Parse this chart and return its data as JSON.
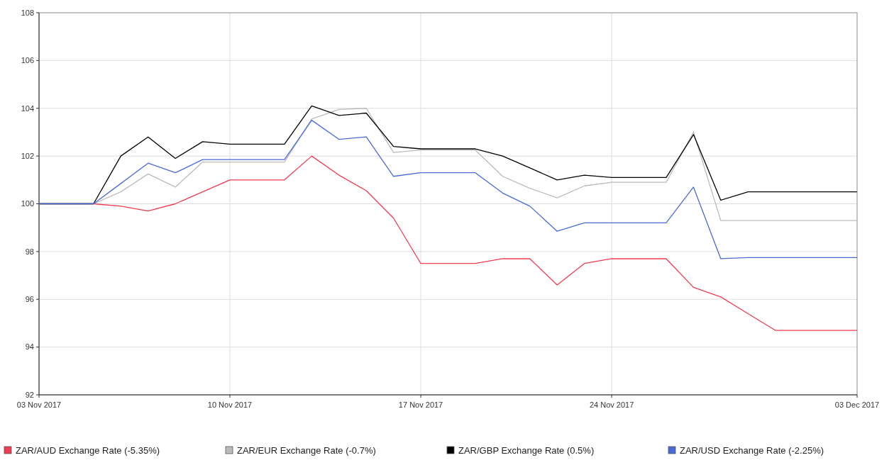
{
  "chart_data": {
    "type": "line",
    "x": [
      "2017-11-03",
      "2017-11-04",
      "2017-11-05",
      "2017-11-06",
      "2017-11-07",
      "2017-11-08",
      "2017-11-09",
      "2017-11-10",
      "2017-11-11",
      "2017-11-12",
      "2017-11-13",
      "2017-11-14",
      "2017-11-15",
      "2017-11-16",
      "2017-11-17",
      "2017-11-18",
      "2017-11-19",
      "2017-11-20",
      "2017-11-21",
      "2017-11-22",
      "2017-11-23",
      "2017-11-24",
      "2017-11-25",
      "2017-11-26",
      "2017-11-27",
      "2017-11-28",
      "2017-11-29",
      "2017-11-30",
      "2017-12-01",
      "2017-12-02",
      "2017-12-03"
    ],
    "series": [
      {
        "name": "ZAR/AUD Exchange Rate (-5.35%)",
        "color": "#f03c50",
        "values": [
          100,
          100,
          100,
          99.9,
          99.7,
          100,
          100.5,
          101,
          101,
          101,
          102,
          101.2,
          100.55,
          99.4,
          97.5,
          97.5,
          97.5,
          97.7,
          97.7,
          96.6,
          97.5,
          97.7,
          97.7,
          97.7,
          96.5,
          96.1,
          95.4,
          94.7,
          94.7,
          94.7,
          94.7
        ]
      },
      {
        "name": "ZAR/EUR Exchange Rate (-0.7%)",
        "color": "#bbbbbb",
        "values": [
          100,
          100,
          100,
          100.5,
          101.25,
          100.7,
          101.75,
          101.75,
          101.75,
          101.75,
          103.55,
          103.95,
          104,
          102.15,
          102.25,
          102.25,
          102.25,
          101.15,
          100.65,
          100.25,
          100.75,
          100.9,
          100.9,
          100.9,
          103,
          99.3,
          99.3,
          99.3,
          99.3,
          99.3,
          99.3
        ]
      },
      {
        "name": "ZAR/GBP Exchange Rate (0.5%)",
        "color": "#000000",
        "values": [
          100,
          100,
          100,
          102,
          102.8,
          101.9,
          102.6,
          102.5,
          102.5,
          102.5,
          104.1,
          103.7,
          103.8,
          102.4,
          102.3,
          102.3,
          102.3,
          102,
          101.5,
          101,
          101.2,
          101.1,
          101.1,
          101.1,
          102.9,
          100.15,
          100.5,
          100.5,
          100.5,
          100.5,
          100.5
        ]
      },
      {
        "name": "ZAR/USD Exchange Rate (-2.25%)",
        "color": "#4a6ad8",
        "values": [
          100,
          100,
          100,
          100.85,
          101.7,
          101.3,
          101.85,
          101.85,
          101.85,
          101.85,
          103.5,
          102.7,
          102.8,
          101.15,
          101.3,
          101.3,
          101.3,
          100.45,
          99.9,
          98.85,
          99.2,
          99.2,
          99.2,
          99.2,
          100.7,
          97.7,
          97.75,
          97.75,
          97.75,
          97.75,
          97.75
        ]
      }
    ],
    "xlim": [
      "2017-11-03",
      "2017-12-03"
    ],
    "xticks": [
      {
        "value": "2017-11-03",
        "label": "03 Nov 2017"
      },
      {
        "value": "2017-11-10",
        "label": "10 Nov 2017"
      },
      {
        "value": "2017-11-17",
        "label": "17 Nov 2017"
      },
      {
        "value": "2017-11-24",
        "label": "24 Nov 2017"
      },
      {
        "value": "2017-12-03",
        "label": "03 Dec 2017"
      }
    ],
    "ylim": [
      92,
      108
    ],
    "yticks": [
      92,
      94,
      96,
      98,
      100,
      102,
      104,
      106,
      108
    ],
    "grid": true,
    "legend": "bottom",
    "marker": "none",
    "line_style": "solid"
  }
}
